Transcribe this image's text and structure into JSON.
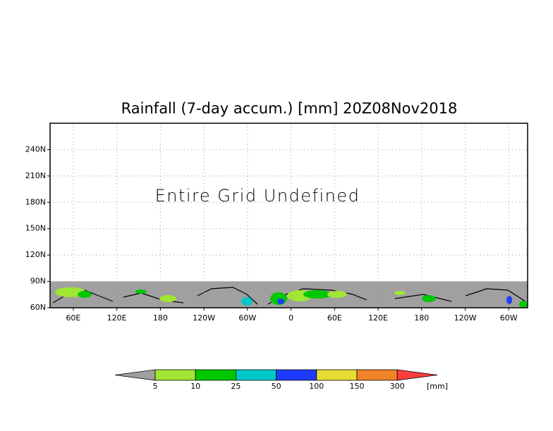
{
  "map": {
    "title": "Rainfall (7-day accum.) [mm] 20Z08Nov2018",
    "annotation": "Entire Grid Undefined",
    "ylim": [
      60,
      270
    ],
    "yticks": [
      {
        "value": 60,
        "label": "60N"
      },
      {
        "value": 90,
        "label": "90N"
      },
      {
        "value": 120,
        "label": "120N"
      },
      {
        "value": 150,
        "label": "150N"
      },
      {
        "value": 180,
        "label": "180N"
      },
      {
        "value": 210,
        "label": "210N"
      },
      {
        "value": 240,
        "label": "240N"
      }
    ],
    "xlim": [
      28,
      686
    ],
    "xticks": [
      {
        "value": 60,
        "label": "60E"
      },
      {
        "value": 120,
        "label": "120E"
      },
      {
        "value": 180,
        "label": "180"
      },
      {
        "value": 240,
        "label": "120W"
      },
      {
        "value": 300,
        "label": "60W"
      },
      {
        "value": 360,
        "label": "0"
      },
      {
        "value": 420,
        "label": "60E"
      },
      {
        "value": 480,
        "label": "120E"
      },
      {
        "value": 540,
        "label": "180"
      },
      {
        "value": 600,
        "label": "120W"
      },
      {
        "value": 660,
        "label": "60W"
      }
    ],
    "grid": true,
    "colorbar": {
      "bounds": [
        5,
        10,
        25,
        50,
        100,
        150,
        300
      ],
      "unit": "[mm]",
      "colors": [
        "#a0a0a0",
        "#a0e632",
        "#00c800",
        "#00c8c8",
        "#1e3cff",
        "#e6dc32",
        "#f08228",
        "#fa3c3c"
      ]
    }
  }
}
